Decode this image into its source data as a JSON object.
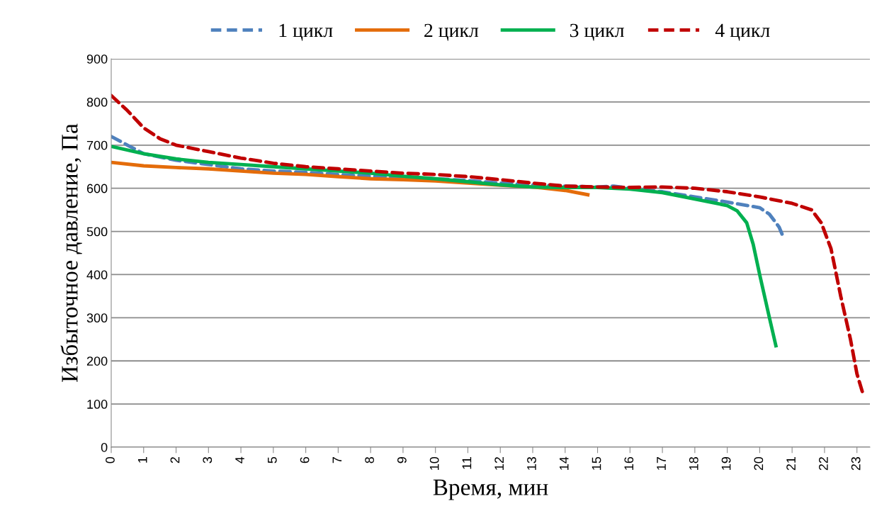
{
  "chart_data": {
    "type": "line",
    "xlabel": "Время, мин",
    "ylabel": "Избыточное давление, Па",
    "xlim": [
      0,
      23.4
    ],
    "xticks": [
      0,
      1,
      2,
      3,
      4,
      5,
      6,
      7,
      8,
      9,
      10,
      11,
      12,
      13,
      14,
      15,
      16,
      17,
      18,
      19,
      20,
      21,
      22,
      23
    ],
    "ylim": [
      0,
      900
    ],
    "yticks": [
      0,
      100,
      200,
      300,
      400,
      500,
      600,
      700,
      800,
      900
    ],
    "grid": "y",
    "legend": "top",
    "series": [
      {
        "name": "1 цикл",
        "color": "#4f81bd",
        "line_style": "dashed",
        "x": [
          0,
          0.5,
          1,
          2,
          3,
          4,
          5,
          6,
          7,
          8,
          9,
          10,
          11,
          12,
          13,
          14,
          15,
          15.5,
          16,
          17,
          18,
          19,
          20,
          20.3,
          20.6,
          20.7
        ],
        "values": [
          720,
          700,
          680,
          665,
          655,
          645,
          640,
          637,
          632,
          628,
          625,
          622,
          618,
          612,
          608,
          605,
          603,
          605,
          600,
          592,
          580,
          568,
          555,
          540,
          510,
          492
        ]
      },
      {
        "name": "2 цикл",
        "color": "#e46c0a",
        "line_style": "solid",
        "x": [
          0,
          1,
          2,
          3,
          4,
          5,
          6,
          7,
          8,
          9,
          10,
          11,
          12,
          13,
          14,
          14.7
        ],
        "values": [
          660,
          652,
          648,
          645,
          640,
          635,
          632,
          627,
          622,
          620,
          617,
          612,
          607,
          603,
          595,
          585
        ]
      },
      {
        "name": "3 цикл",
        "color": "#00b050",
        "line_style": "solid",
        "x": [
          0,
          1,
          2,
          3,
          4,
          5,
          6,
          7,
          8,
          9,
          10,
          11,
          12,
          13,
          14,
          15,
          16,
          17,
          18,
          19,
          19.3,
          19.6,
          19.8,
          20,
          20.3,
          20.5
        ],
        "values": [
          697,
          680,
          668,
          660,
          655,
          650,
          645,
          640,
          635,
          628,
          622,
          615,
          608,
          603,
          602,
          602,
          598,
          590,
          575,
          560,
          548,
          520,
          470,
          400,
          300,
          235
        ]
      },
      {
        "name": "4 цикл",
        "color": "#c00000",
        "line_style": "dashed",
        "x": [
          0,
          0.5,
          1,
          1.5,
          2,
          3,
          4,
          5,
          6,
          7,
          8,
          9,
          10,
          11,
          12,
          13,
          14,
          15,
          16,
          17,
          18,
          19,
          20,
          21,
          21.6,
          21.9,
          22.2,
          22.5,
          22.8,
          23,
          23.2
        ],
        "values": [
          815,
          780,
          740,
          715,
          700,
          685,
          670,
          658,
          650,
          645,
          640,
          635,
          632,
          627,
          620,
          612,
          605,
          603,
          602,
          603,
          600,
          592,
          580,
          565,
          550,
          520,
          460,
          350,
          250,
          170,
          120
        ]
      }
    ]
  }
}
